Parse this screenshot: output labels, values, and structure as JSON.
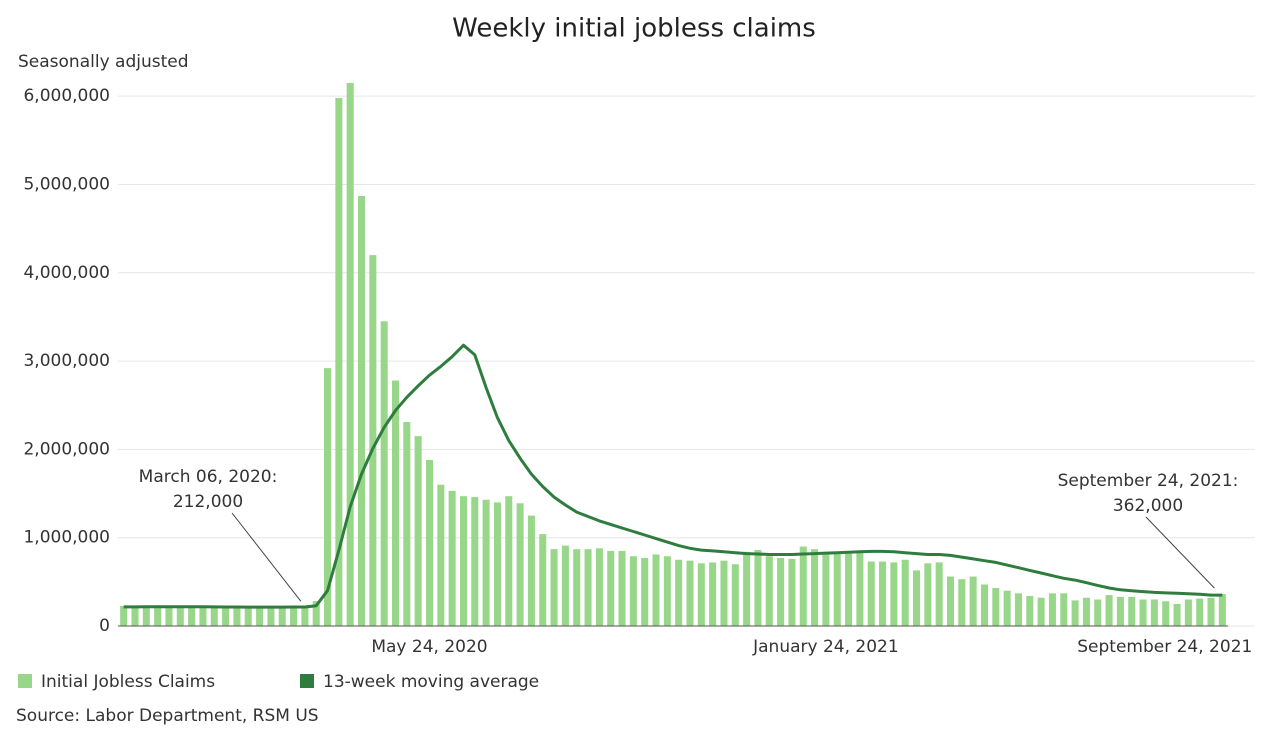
{
  "chart_data": {
    "type": "bar_line",
    "title": "Weekly initial jobless claims",
    "subtitle": "Seasonally adjusted",
    "source": "Source: Labor Department, RSM US",
    "categories": [
      null,
      null,
      null,
      null,
      null,
      null,
      null,
      null,
      null,
      null,
      null,
      null,
      null,
      null,
      null,
      null,
      null,
      null,
      null,
      null,
      null,
      null,
      null,
      null,
      null,
      null,
      null,
      "May 24, 2020",
      null,
      null,
      null,
      null,
      null,
      null,
      null,
      null,
      null,
      null,
      null,
      null,
      null,
      null,
      null,
      null,
      null,
      null,
      null,
      null,
      null,
      null,
      null,
      null,
      null,
      null,
      null,
      null,
      null,
      null,
      null,
      null,
      null,
      null,
      "January 24, 2021",
      null,
      null,
      null,
      null,
      null,
      null,
      null,
      null,
      null,
      null,
      null,
      null,
      null,
      null,
      null,
      null,
      null,
      null,
      null,
      null,
      null,
      null,
      null,
      null,
      null,
      null,
      null,
      null,
      null,
      null,
      null,
      null,
      null,
      null,
      "September 24, 2021"
    ],
    "series": [
      {
        "name": "Initial Jobless Claims",
        "color": "#98d68a",
        "kind": "bar",
        "values": [
          228000,
          213000,
          225000,
          235000,
          222000,
          220000,
          209000,
          211000,
          214000,
          203000,
          213000,
          216000,
          210000,
          217000,
          219000,
          216000,
          212000,
          282000,
          2920000,
          5980000,
          6150000,
          4870000,
          4200000,
          3450000,
          2780000,
          2310000,
          2150000,
          1880000,
          1600000,
          1530000,
          1470000,
          1460000,
          1430000,
          1400000,
          1470000,
          1390000,
          1250000,
          1040000,
          870000,
          910000,
          870000,
          870000,
          880000,
          850000,
          850000,
          790000,
          770000,
          810000,
          790000,
          750000,
          740000,
          710000,
          720000,
          740000,
          700000,
          840000,
          860000,
          790000,
          770000,
          760000,
          900000,
          870000,
          830000,
          820000,
          840000,
          840000,
          730000,
          730000,
          720000,
          750000,
          630000,
          710000,
          720000,
          560000,
          530000,
          560000,
          470000,
          430000,
          400000,
          370000,
          340000,
          320000,
          370000,
          370000,
          290000,
          320000,
          300000,
          350000,
          330000,
          330000,
          300000,
          300000,
          280000,
          250000,
          300000,
          310000,
          320000,
          362000
        ]
      },
      {
        "name": "13-week moving average",
        "color": "#2e7d3e",
        "kind": "line",
        "values": [
          216000,
          216000,
          217000,
          217000,
          218000,
          218000,
          218000,
          217000,
          216000,
          215000,
          215000,
          214000,
          214000,
          214000,
          214000,
          215000,
          215000,
          230000,
          400000,
          860000,
          1350000,
          1720000,
          2010000,
          2250000,
          2440000,
          2590000,
          2720000,
          2840000,
          2940000,
          3050000,
          3180000,
          3070000,
          2700000,
          2360000,
          2100000,
          1900000,
          1720000,
          1580000,
          1460000,
          1370000,
          1290000,
          1240000,
          1190000,
          1150000,
          1110000,
          1070000,
          1030000,
          990000,
          950000,
          910000,
          880000,
          860000,
          850000,
          840000,
          830000,
          820000,
          815000,
          810000,
          810000,
          810000,
          815000,
          820000,
          825000,
          830000,
          835000,
          840000,
          845000,
          845000,
          840000,
          830000,
          820000,
          810000,
          810000,
          800000,
          780000,
          760000,
          740000,
          720000,
          690000,
          660000,
          630000,
          600000,
          570000,
          540000,
          520000,
          490000,
          460000,
          430000,
          410000,
          400000,
          390000,
          380000,
          375000,
          370000,
          365000,
          360000,
          350000,
          350000
        ]
      }
    ],
    "annotations": [
      {
        "text": "March 06, 2020:",
        "value": 212000,
        "value_label": "212,000"
      },
      {
        "text": "September 24, 2021:",
        "value": 362000,
        "value_label": "362,000"
      }
    ],
    "ylim": [
      0,
      6200000
    ],
    "yticks": [
      0,
      {
        "value": 1000000,
        "label": "1,000,000"
      },
      {
        "value": 2000000,
        "label": "2,000,000"
      },
      {
        "value": 3000000,
        "label": "3,000,000"
      },
      {
        "value": 4000000,
        "label": "4,000,000"
      },
      {
        "value": 5000000,
        "label": "5,000,000"
      },
      {
        "value": 6000000,
        "label": "6,000,000"
      }
    ],
    "grid": true
  }
}
